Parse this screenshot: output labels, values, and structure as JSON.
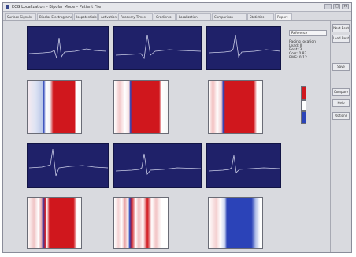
{
  "window": {
    "title": "ECG Localization – Bipolar Mode – Patient File",
    "minimize_glyph": "–",
    "maximize_glyph": "□",
    "close_glyph": "×"
  },
  "tabs": [
    {
      "label": "Surface Signals"
    },
    {
      "label": "Bipolar Electrograms"
    },
    {
      "label": "Isopotentials"
    },
    {
      "label": "Activation"
    },
    {
      "label": "Recovery Times"
    },
    {
      "label": "Gradients"
    },
    {
      "label": "Localization"
    },
    {
      "label": "Comparison"
    },
    {
      "label": "Statistics"
    },
    {
      "label": "Report"
    }
  ],
  "dropdown": {
    "value": "Reference"
  },
  "info_lines": [
    "Pacing location",
    "Lead: II",
    "Beat: 3",
    "Corr: 0.87",
    "RMS: 0.12"
  ],
  "sidebar": {
    "buttons": [
      "Next Beat",
      "Load Beats",
      "Save",
      "Compare",
      "Help",
      "Options"
    ]
  },
  "colors": {
    "ecg_bg": "#1f2169",
    "trace": "#c9cce6",
    "red": "#d0171d",
    "blue": "#2b43b8",
    "legend_red": "#d0171d",
    "legend_blue": "#2b43b8"
  },
  "icons": {
    "app": "app-logo-icon"
  }
}
